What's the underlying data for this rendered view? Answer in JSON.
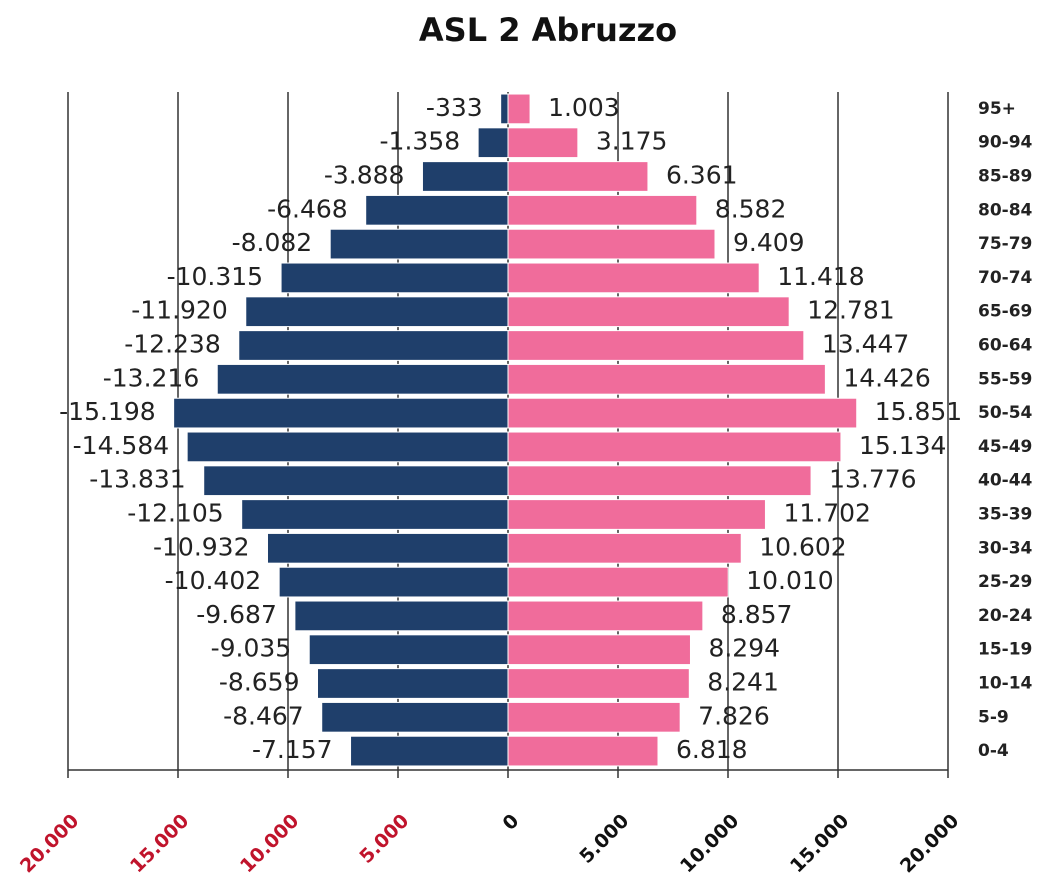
{
  "chart_data": {
    "type": "pyramid",
    "title": "ASL 2 Abruzzo",
    "categories": [
      "0-4",
      "5-9",
      "10-14",
      "15-19",
      "20-24",
      "25-29",
      "30-34",
      "35-39",
      "40-44",
      "45-49",
      "50-54",
      "55-59",
      "60-64",
      "65-69",
      "70-74",
      "75-79",
      "80-84",
      "85-89",
      "90-94",
      "95+"
    ],
    "series": [
      {
        "color": "#1f3f6b",
        "values": [
          -7157,
          -8467,
          -8659,
          -9035,
          -9687,
          -10402,
          -10932,
          -12105,
          -13831,
          -14584,
          -15198,
          -13216,
          -12238,
          -11920,
          -10315,
          -8082,
          -6468,
          -3888,
          -1358,
          -333
        ],
        "value_labels": [
          "-7.157",
          "-8.467",
          "-8.659",
          "-9.035",
          "-9.687",
          "-10.402",
          "-10.932",
          "-12.105",
          "-13.831",
          "-14.584",
          "-15.198",
          "-13.216",
          "-12.238",
          "-11.920",
          "-10.315",
          "-8.082",
          "-6.468",
          "-3.888",
          "-1.358",
          "-333"
        ]
      },
      {
        "color": "#f06c9b",
        "values": [
          6818,
          7826,
          8241,
          8294,
          8857,
          10010,
          10602,
          11702,
          13776,
          15134,
          15851,
          14426,
          13447,
          12781,
          11418,
          9409,
          8582,
          6361,
          3175,
          1003
        ],
        "value_labels": [
          "6.818",
          "7.826",
          "8.241",
          "8.294",
          "8.857",
          "10.010",
          "10.602",
          "11.702",
          "13.776",
          "15.134",
          "15.851",
          "14.426",
          "13.447",
          "12.781",
          "11.418",
          "9.409",
          "8.582",
          "6.361",
          "3.175",
          "1.003"
        ]
      }
    ],
    "xlim": [
      -20000,
      20000
    ],
    "xticks": [
      {
        "value": -20000,
        "label": "20.000"
      },
      {
        "value": -15000,
        "label": "15.000"
      },
      {
        "value": -10000,
        "label": "10.000"
      },
      {
        "value": -5000,
        "label": "5.000"
      },
      0,
      {
        "value": 5000,
        "label": "5.000"
      },
      {
        "value": 10000,
        "label": "10.000"
      },
      {
        "value": 15000,
        "label": "15.000"
      },
      {
        "value": 20000,
        "label": "20.000"
      }
    ],
    "negative_tick_color": "#c0142c",
    "grid": true
  }
}
